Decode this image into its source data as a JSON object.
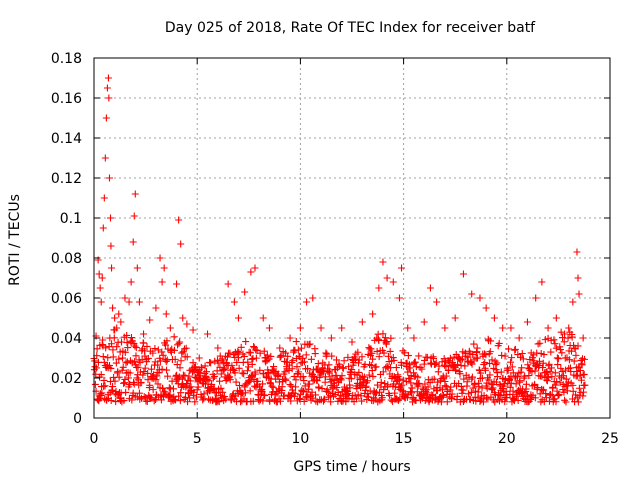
{
  "chart_data": {
    "type": "scatter",
    "title": "Day 025 of 2018, Rate Of TEC Index for receiver batf",
    "xlabel": "GPS time / hours",
    "ylabel": "ROTI / TECUs",
    "xlim": [
      0,
      25
    ],
    "ylim": [
      0,
      0.18
    ],
    "xticks": [
      0,
      5,
      10,
      15,
      20,
      25
    ],
    "xtick_labels": [
      "0",
      "5",
      "10",
      "15",
      "20",
      "25"
    ],
    "yticks": [
      0,
      0.02,
      0.04,
      0.06,
      0.08,
      0.1,
      0.12,
      0.14,
      0.16,
      0.18
    ],
    "ytick_labels": [
      "0",
      "0.02",
      "0.04",
      "0.06",
      "0.08",
      "0.1",
      "0.12",
      "0.14",
      "0.16",
      "0.18"
    ],
    "grid": true,
    "marker": "+",
    "color": "#ff0000",
    "series": [
      {
        "name": "ROTI",
        "points": [
          [
            0.1,
            0.041
          ],
          [
            0.2,
            0.079
          ],
          [
            0.25,
            0.072
          ],
          [
            0.3,
            0.065
          ],
          [
            0.35,
            0.058
          ],
          [
            0.4,
            0.07
          ],
          [
            0.45,
            0.095
          ],
          [
            0.5,
            0.11
          ],
          [
            0.55,
            0.13
          ],
          [
            0.6,
            0.15
          ],
          [
            0.65,
            0.165
          ],
          [
            0.7,
            0.17
          ],
          [
            0.72,
            0.16
          ],
          [
            0.75,
            0.12
          ],
          [
            0.8,
            0.1
          ],
          [
            0.82,
            0.086
          ],
          [
            0.85,
            0.075
          ],
          [
            0.9,
            0.055
          ],
          [
            1.0,
            0.05
          ],
          [
            1.1,
            0.045
          ],
          [
            1.2,
            0.052
          ],
          [
            1.3,
            0.048
          ],
          [
            1.5,
            0.06
          ],
          [
            1.7,
            0.058
          ],
          [
            1.8,
            0.068
          ],
          [
            1.9,
            0.088
          ],
          [
            1.95,
            0.101
          ],
          [
            2.0,
            0.112
          ],
          [
            2.1,
            0.075
          ],
          [
            2.2,
            0.058
          ],
          [
            2.4,
            0.042
          ],
          [
            2.7,
            0.049
          ],
          [
            3.0,
            0.055
          ],
          [
            3.2,
            0.08
          ],
          [
            3.3,
            0.068
          ],
          [
            3.4,
            0.075
          ],
          [
            3.5,
            0.052
          ],
          [
            3.7,
            0.045
          ],
          [
            4.0,
            0.067
          ],
          [
            4.1,
            0.099
          ],
          [
            4.2,
            0.087
          ],
          [
            4.3,
            0.05
          ],
          [
            4.5,
            0.047
          ],
          [
            4.8,
            0.044
          ],
          [
            5.1,
            0.03
          ],
          [
            5.5,
            0.042
          ],
          [
            6.0,
            0.035
          ],
          [
            6.5,
            0.067
          ],
          [
            6.8,
            0.058
          ],
          [
            7.0,
            0.05
          ],
          [
            7.3,
            0.063
          ],
          [
            7.6,
            0.073
          ],
          [
            7.8,
            0.075
          ],
          [
            8.2,
            0.05
          ],
          [
            8.5,
            0.045
          ],
          [
            9.0,
            0.035
          ],
          [
            9.5,
            0.04
          ],
          [
            10.0,
            0.045
          ],
          [
            10.3,
            0.058
          ],
          [
            10.6,
            0.06
          ],
          [
            11.0,
            0.045
          ],
          [
            11.5,
            0.04
          ],
          [
            12.0,
            0.045
          ],
          [
            12.5,
            0.038
          ],
          [
            13.0,
            0.048
          ],
          [
            13.5,
            0.052
          ],
          [
            13.8,
            0.065
          ],
          [
            14.0,
            0.078
          ],
          [
            14.2,
            0.07
          ],
          [
            14.5,
            0.068
          ],
          [
            14.8,
            0.06
          ],
          [
            14.9,
            0.075
          ],
          [
            15.2,
            0.045
          ],
          [
            15.5,
            0.04
          ],
          [
            16.0,
            0.048
          ],
          [
            16.3,
            0.065
          ],
          [
            16.6,
            0.058
          ],
          [
            17.0,
            0.045
          ],
          [
            17.5,
            0.05
          ],
          [
            17.9,
            0.072
          ],
          [
            18.3,
            0.062
          ],
          [
            18.7,
            0.06
          ],
          [
            19.0,
            0.055
          ],
          [
            19.4,
            0.05
          ],
          [
            19.8,
            0.045
          ],
          [
            20.2,
            0.045
          ],
          [
            20.6,
            0.04
          ],
          [
            21.0,
            0.048
          ],
          [
            21.4,
            0.06
          ],
          [
            21.7,
            0.068
          ],
          [
            22.0,
            0.045
          ],
          [
            22.4,
            0.05
          ],
          [
            22.8,
            0.042
          ],
          [
            23.0,
            0.045
          ],
          [
            23.2,
            0.058
          ],
          [
            23.4,
            0.083
          ],
          [
            23.45,
            0.07
          ],
          [
            23.5,
            0.062
          ],
          [
            23.7,
            0.04
          ]
        ]
      }
    ],
    "baseline": {
      "description": "dense band of ROTI samples",
      "x_range": [
        0.0,
        23.8
      ],
      "typical_min": 0.008,
      "typical_max": 0.035,
      "samples_per_hour": 60,
      "envelope_hours": [
        0,
        1,
        2,
        3,
        4,
        5,
        6,
        7,
        8,
        9,
        10,
        11,
        12,
        13,
        14,
        15,
        16,
        17,
        18,
        19,
        20,
        21,
        22,
        23,
        23.8
      ],
      "envelope_max": [
        0.035,
        0.045,
        0.04,
        0.035,
        0.045,
        0.025,
        0.03,
        0.04,
        0.035,
        0.032,
        0.04,
        0.034,
        0.03,
        0.034,
        0.045,
        0.034,
        0.032,
        0.03,
        0.036,
        0.04,
        0.036,
        0.034,
        0.04,
        0.045,
        0.03
      ]
    }
  }
}
